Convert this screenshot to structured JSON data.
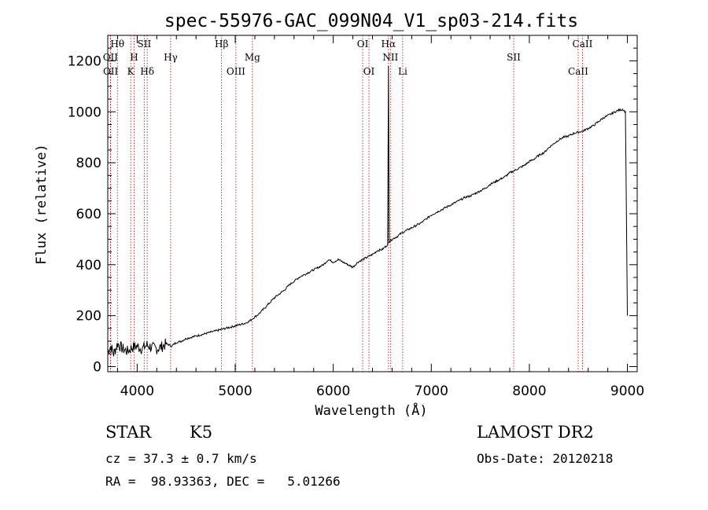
{
  "chart_data": {
    "type": "line",
    "title": "spec-55976-GAC_099N04_V1_sp03-214.fits",
    "xlabel": "Wavelength (Å)",
    "ylabel": "Flux (relative)",
    "xlim": [
      3700,
      9100
    ],
    "ylim": [
      -20,
      1300
    ],
    "x_ticks": [
      4000,
      5000,
      6000,
      7000,
      8000,
      9000
    ],
    "y_ticks": [
      0,
      200,
      400,
      600,
      800,
      1000,
      1200
    ],
    "grid": false,
    "series": [
      {
        "x": [
          3700,
          3730,
          3760,
          3800,
          3850,
          3900,
          3950,
          4000,
          4050,
          4100,
          4150,
          4200,
          4250,
          4300,
          4350,
          4400,
          4450,
          4500,
          4550,
          4600,
          4650,
          4700,
          4750,
          4800,
          4850,
          4900,
          4950,
          5000,
          5050,
          5100,
          5150,
          5200,
          5250,
          5300,
          5350,
          5400,
          5450,
          5500,
          5550,
          5600,
          5650,
          5700,
          5750,
          5800,
          5850,
          5900,
          5950,
          6000,
          6050,
          6100,
          6150,
          6200,
          6250,
          6300,
          6350,
          6400,
          6450,
          6500,
          6530,
          6555,
          6563,
          6570,
          6600,
          6650,
          6700,
          6750,
          6800,
          6850,
          6900,
          6950,
          7000,
          7050,
          7100,
          7150,
          7200,
          7250,
          7300,
          7350,
          7400,
          7450,
          7500,
          7550,
          7600,
          7650,
          7700,
          7750,
          7800,
          7850,
          7900,
          7950,
          8000,
          8050,
          8100,
          8150,
          8200,
          8250,
          8300,
          8350,
          8400,
          8450,
          8500,
          8550,
          8600,
          8650,
          8700,
          8750,
          8800,
          8850,
          8900,
          8950,
          8980,
          9000
        ],
        "y": [
          60,
          80,
          50,
          90,
          70,
          60,
          75,
          80,
          70,
          85,
          75,
          70,
          78,
          90,
          80,
          95,
          100,
          110,
          115,
          120,
          125,
          130,
          135,
          140,
          145,
          150,
          155,
          160,
          165,
          170,
          180,
          195,
          210,
          230,
          250,
          270,
          285,
          300,
          320,
          335,
          350,
          360,
          370,
          380,
          390,
          400,
          420,
          410,
          420,
          410,
          400,
          390,
          410,
          420,
          430,
          440,
          455,
          460,
          470,
          480,
          1180,
          490,
          500,
          510,
          525,
          535,
          545,
          555,
          565,
          580,
          595,
          605,
          615,
          625,
          635,
          645,
          655,
          665,
          670,
          680,
          690,
          700,
          715,
          725,
          735,
          745,
          760,
          770,
          780,
          790,
          805,
          815,
          830,
          840,
          860,
          875,
          890,
          900,
          905,
          915,
          920,
          925,
          935,
          945,
          960,
          975,
          985,
          995,
          1005,
          1010,
          1000,
          200
        ]
      }
    ],
    "line_markers": [
      {
        "label": "Hθ",
        "wavelength": 3798,
        "row": 1
      },
      {
        "label": "OII",
        "wavelength": 3727,
        "row": 2
      },
      {
        "label": "OII",
        "wavelength": 3729,
        "row": 3
      },
      {
        "label": "H",
        "wavelength": 3969,
        "row": 2
      },
      {
        "label": "K",
        "wavelength": 3934,
        "row": 3
      },
      {
        "label": "SII",
        "wavelength": 4072,
        "row": 1
      },
      {
        "label": "Hδ",
        "wavelength": 4102,
        "row": 3
      },
      {
        "label": "Hγ",
        "wavelength": 4341,
        "row": 2
      },
      {
        "label": "Hβ",
        "wavelength": 4861,
        "row": 1
      },
      {
        "label": "Mg",
        "wavelength": 5175,
        "row": 2
      },
      {
        "label": "OIII",
        "wavelength": 5007,
        "row": 3
      },
      {
        "label": "OI",
        "wavelength": 6300,
        "row": 1
      },
      {
        "label": "OI",
        "wavelength": 6364,
        "row": 3
      },
      {
        "label": "Hα",
        "wavelength": 6563,
        "row": 1
      },
      {
        "label": "NII",
        "wavelength": 6583,
        "row": 2
      },
      {
        "label": "Li",
        "wavelength": 6708,
        "row": 3
      },
      {
        "label": "SII",
        "wavelength": 7840,
        "row": 2
      },
      {
        "label": "CaII",
        "wavelength": 8542,
        "row": 1
      },
      {
        "label": "CaII",
        "wavelength": 8498,
        "row": 3
      }
    ]
  },
  "info": {
    "object_class": "STAR",
    "subclass": "K5",
    "survey": "LAMOST DR2",
    "velocity": "cz = 37.3 ± 0.7 km/s",
    "obs_date": "Obs-Date: 20120218",
    "coordinates": "RA =  98.93363, DEC =   5.01266"
  },
  "colors": {
    "spectrum": "#000000",
    "line_marker": "#b00000",
    "background": "#ffffff"
  }
}
